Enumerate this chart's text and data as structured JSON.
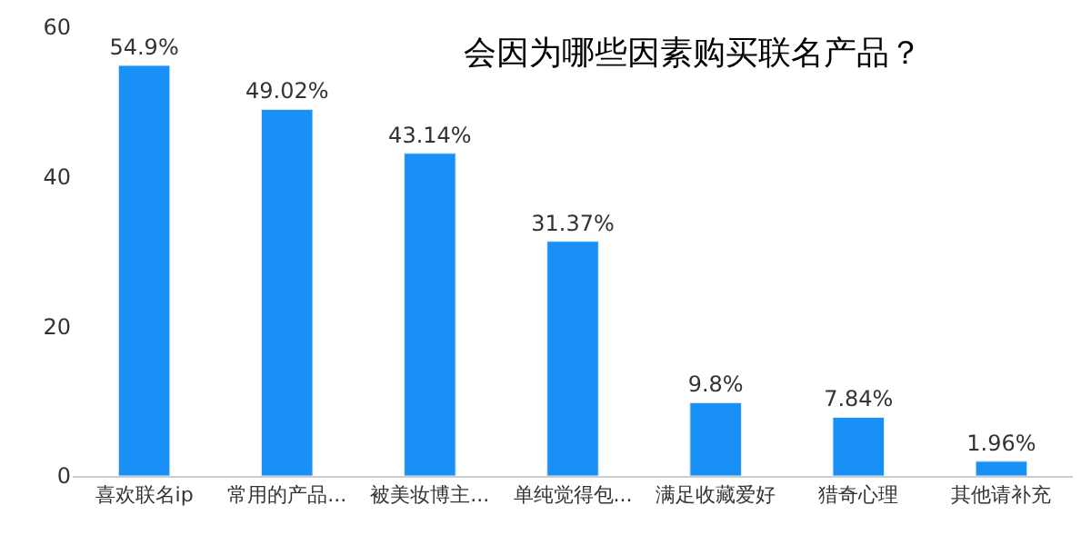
{
  "chart_data": {
    "type": "bar",
    "title": "会因为哪些因素购买联名产品？",
    "categories": [
      "喜欢联名ip",
      "常用的产品...",
      "被美妆博主...",
      "单纯觉得包...",
      "满足收藏爱好",
      "猎奇心理",
      "其他请补充"
    ],
    "values": [
      54.9,
      49.02,
      43.14,
      31.37,
      9.8,
      7.84,
      1.96
    ],
    "value_labels": [
      "54.9%",
      "49.02%",
      "43.14%",
      "31.37%",
      "9.8%",
      "7.84%",
      "1.96%"
    ],
    "color": "#1890f5",
    "ylim": [
      0,
      60
    ],
    "yticks": [
      0,
      20,
      40,
      60
    ],
    "legend": false
  }
}
